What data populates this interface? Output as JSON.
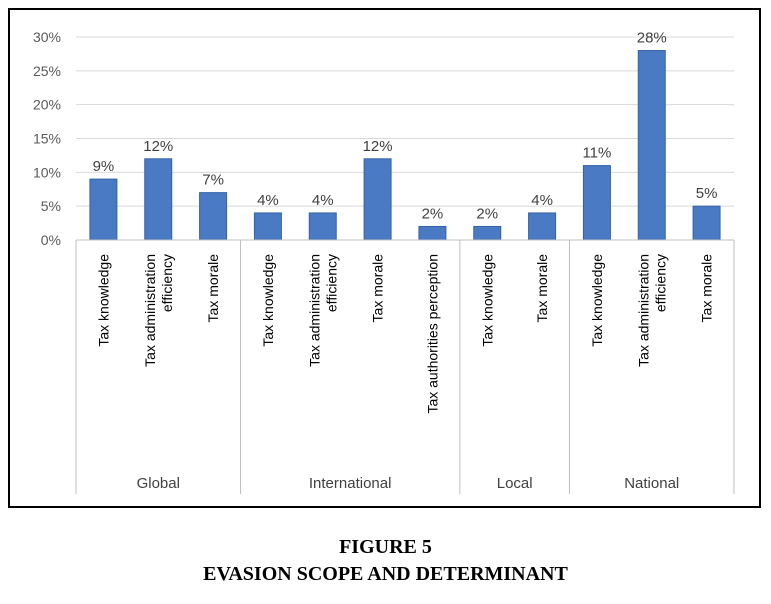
{
  "caption": {
    "line1": "FIGURE 5",
    "line2": "EVASION SCOPE AND DETERMINANT"
  },
  "chart_data": {
    "type": "bar",
    "title": "",
    "xlabel": "",
    "ylabel": "",
    "ylim": [
      0,
      30
    ],
    "yticks": [
      "0%",
      "5%",
      "10%",
      "15%",
      "20%",
      "25%",
      "30%"
    ],
    "bar_color": "#4a7ac4",
    "groups": [
      {
        "name": "Global",
        "categories": [
          {
            "label": [
              "Tax knowledge"
            ],
            "value": 9,
            "value_label": "9%"
          },
          {
            "label": [
              "Tax administration",
              "efficiency"
            ],
            "value": 12,
            "value_label": "12%"
          },
          {
            "label": [
              "Tax morale"
            ],
            "value": 7,
            "value_label": "7%"
          }
        ]
      },
      {
        "name": "International",
        "categories": [
          {
            "label": [
              "Tax knowledge"
            ],
            "value": 4,
            "value_label": "4%"
          },
          {
            "label": [
              "Tax administration",
              "efficiency"
            ],
            "value": 4,
            "value_label": "4%"
          },
          {
            "label": [
              "Tax morale"
            ],
            "value": 12,
            "value_label": "12%"
          },
          {
            "label": [
              "Tax authorities perception"
            ],
            "value": 2,
            "value_label": "2%"
          }
        ]
      },
      {
        "name": "Local",
        "categories": [
          {
            "label": [
              "Tax knowledge"
            ],
            "value": 2,
            "value_label": "2%"
          },
          {
            "label": [
              "Tax morale"
            ],
            "value": 4,
            "value_label": "4%"
          }
        ]
      },
      {
        "name": "National",
        "categories": [
          {
            "label": [
              "Tax knowledge"
            ],
            "value": 11,
            "value_label": "11%"
          },
          {
            "label": [
              "Tax administration",
              "efficiency"
            ],
            "value": 28,
            "value_label": "28%"
          },
          {
            "label": [
              "Tax morale"
            ],
            "value": 5,
            "value_label": "5%"
          }
        ]
      }
    ]
  }
}
